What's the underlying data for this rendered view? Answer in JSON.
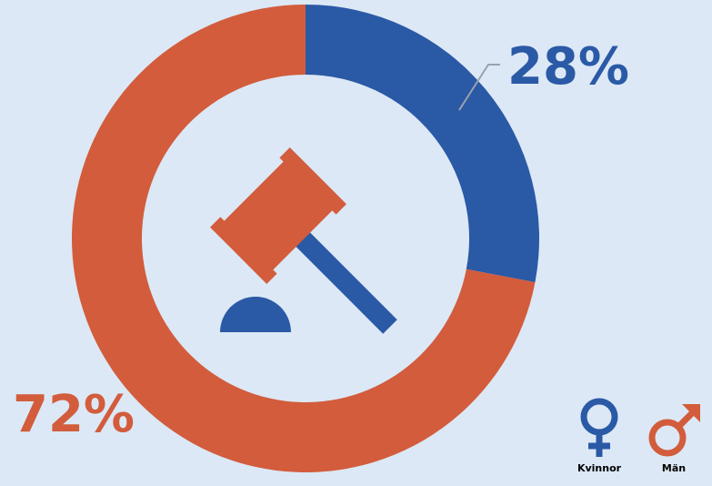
{
  "chart_data": {
    "type": "pie",
    "categories": [
      "Kvinnor",
      "Män"
    ],
    "values": [
      28,
      72
    ],
    "value_labels": [
      "28%",
      "72%"
    ],
    "unit": "%",
    "style": "donut"
  },
  "legend": {
    "placement": "bottom-right",
    "items": [
      {
        "label": "Kvinnor",
        "icon": "female-symbol-icon",
        "color": "#2a59a6"
      },
      {
        "label": "Män",
        "icon": "male-symbol-icon",
        "color": "#d25c3c"
      }
    ]
  },
  "center_icon": "gavel-icon",
  "colors": {
    "background": "#dce8f5",
    "women": "#2a59a6",
    "men": "#d25c3c",
    "leader": "#9aa3ad"
  }
}
